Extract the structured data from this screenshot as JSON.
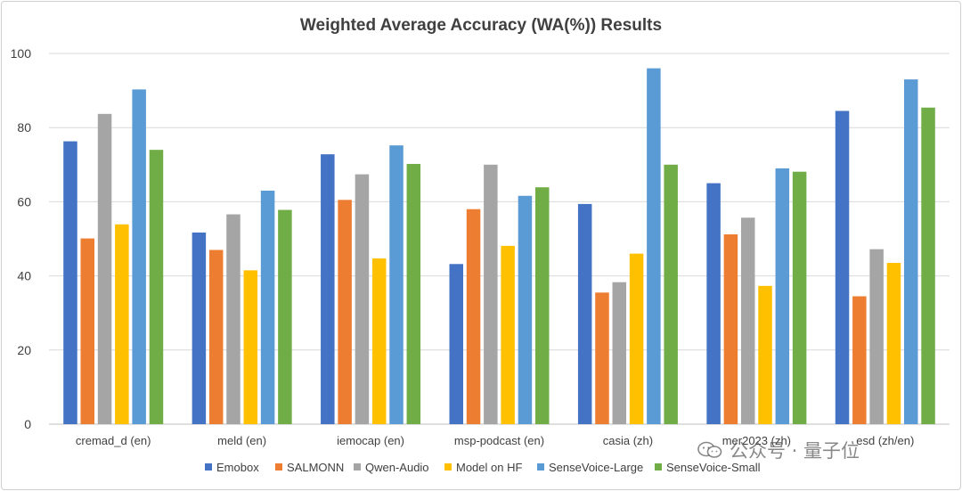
{
  "chart_data": {
    "type": "bar",
    "title": "Weighted Average Accuracy (WA(%)) Results",
    "xlabel": "",
    "ylabel": "",
    "ylim": [
      0,
      100
    ],
    "yticks": [
      0,
      20,
      40,
      60,
      80,
      100
    ],
    "grid": true,
    "legend_position": "bottom",
    "categories": [
      "cremad_d (en)",
      "meld (en)",
      "iemocap (en)",
      "msp-podcast (en)",
      "casia (zh)",
      "mer2023 (zh)",
      "esd (zh/en)"
    ],
    "series": [
      {
        "name": "Emobox",
        "color": "#4472C4",
        "values": [
          76.3,
          51.7,
          72.8,
          43.2,
          59.4,
          65.0,
          84.5
        ]
      },
      {
        "name": "SALMONN",
        "color": "#ED7D31",
        "values": [
          50.1,
          47.0,
          60.5,
          58.0,
          35.5,
          51.2,
          34.5
        ]
      },
      {
        "name": "Qwen-Audio",
        "color": "#A5A5A5",
        "values": [
          83.7,
          56.6,
          67.4,
          70.0,
          38.3,
          55.7,
          47.2
        ]
      },
      {
        "name": "Model on HF",
        "color": "#FFC000",
        "values": [
          53.9,
          41.5,
          44.7,
          48.1,
          46.0,
          37.3,
          43.5
        ]
      },
      {
        "name": "SenseVoice-Large",
        "color": "#5B9BD5",
        "values": [
          90.3,
          63.0,
          75.2,
          61.6,
          96.0,
          69.0,
          93.0
        ]
      },
      {
        "name": "SenseVoice-Small",
        "color": "#70AD47",
        "values": [
          74.0,
          57.8,
          70.2,
          63.9,
          70.0,
          68.1,
          85.4
        ]
      }
    ]
  },
  "watermark": {
    "icon": "wechat-icon",
    "text": "公众号 · 量子位"
  }
}
